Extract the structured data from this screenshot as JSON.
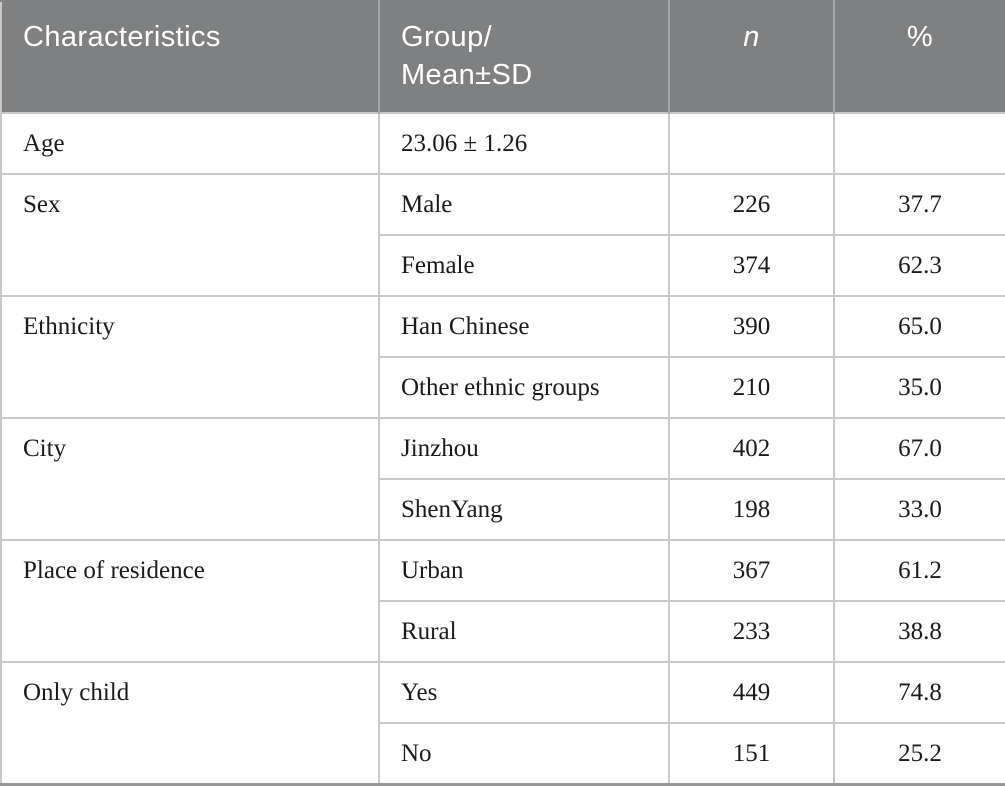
{
  "table": {
    "header": {
      "characteristics": "Characteristics",
      "group_line1": "Group/",
      "group_line2": "Mean±SD",
      "n": "n",
      "percent": "%"
    },
    "columns": [
      "Characteristics",
      "Group/Mean±SD",
      "n",
      "%"
    ],
    "groups": [
      {
        "characteristic": "Age",
        "rows": [
          {
            "group": "23.06 ± 1.26",
            "n": "",
            "pct": ""
          }
        ]
      },
      {
        "characteristic": "Sex",
        "rows": [
          {
            "group": "Male",
            "n": "226",
            "pct": "37.7"
          },
          {
            "group": "Female",
            "n": "374",
            "pct": "62.3"
          }
        ]
      },
      {
        "characteristic": "Ethnicity",
        "rows": [
          {
            "group": "Han Chinese",
            "n": "390",
            "pct": "65.0"
          },
          {
            "group": "Other ethnic groups",
            "n": "210",
            "pct": "35.0"
          }
        ]
      },
      {
        "characteristic": "City",
        "rows": [
          {
            "group": "Jinzhou",
            "n": "402",
            "pct": "67.0"
          },
          {
            "group": "ShenYang",
            "n": "198",
            "pct": "33.0"
          }
        ]
      },
      {
        "characteristic": "Place of residence",
        "rows": [
          {
            "group": "Urban",
            "n": "367",
            "pct": "61.2"
          },
          {
            "group": "Rural",
            "n": "233",
            "pct": "38.8"
          }
        ]
      },
      {
        "characteristic": "Only child",
        "rows": [
          {
            "group": "Yes",
            "n": "449",
            "pct": "74.8"
          },
          {
            "group": "No",
            "n": "151",
            "pct": "25.2"
          }
        ]
      }
    ],
    "colors": {
      "header_bg": "#7f8081",
      "header_text": "#ffffff",
      "header_divider": "#a6a7a8",
      "body_border": "#c8c8c8",
      "bottom_border": "#97999b",
      "body_text": "#1a1a1a"
    }
  }
}
